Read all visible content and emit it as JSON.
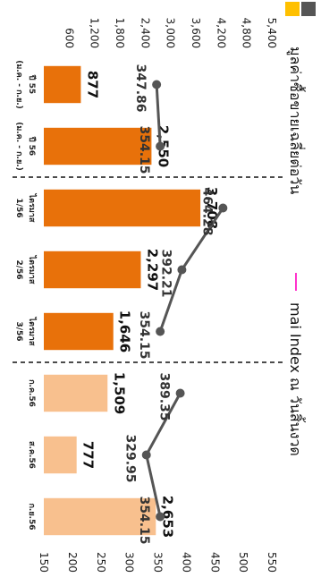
{
  "chart_data": {
    "type": "bar+line",
    "categories": [
      {
        "line1": "ปี 55",
        "line2": "(ม.ค. - ก.ย.)"
      },
      {
        "line1": "ปี 56",
        "line2": "(ม.ค. - ก.ย.)"
      },
      {
        "line1": "ไตรมาส",
        "line2": "1/56"
      },
      {
        "line1": "ไตรมาส",
        "line2": "2/56"
      },
      {
        "line1": "ไตรมาส",
        "line2": "3/56"
      },
      {
        "line1": "ก.ค.56",
        "line2": ""
      },
      {
        "line1": "ส.ค.56",
        "line2": ""
      },
      {
        "line1": "ก.ย.56",
        "line2": ""
      }
    ],
    "series": [
      {
        "kind": "bar",
        "name": "มูลค่าซื้อขายเฉลี่ยต่อวัน",
        "values": [
          877,
          2550,
          3708,
          2297,
          1646,
          1509,
          777,
          2653
        ],
        "labels": [
          "877",
          "2,550",
          "3,708",
          "2,297",
          "1,646",
          "1,509",
          "777",
          "2,653"
        ],
        "colors": [
          "#E8710A",
          "#E8710A",
          "#E8710A",
          "#E8710A",
          "#E8710A",
          "#F8C08E",
          "#F8C08E",
          "#F8C08E"
        ],
        "axis": "left"
      },
      {
        "kind": "line",
        "name": "mai Index ณ วันสิ้นงวด",
        "segments": [
          {
            "points": [
              [
                0,
                347.86
              ],
              [
                1,
                354.15
              ]
            ],
            "labels": [
              "347.86",
              "354.15"
            ]
          },
          {
            "points": [
              [
                2,
                464.28
              ],
              [
                3,
                392.21
              ],
              [
                4,
                354.15
              ]
            ],
            "labels": [
              "464.28",
              "392.21",
              "354.15"
            ]
          },
          {
            "points": [
              [
                5,
                389.35
              ],
              [
                6,
                329.95
              ],
              [
                7,
                354.15
              ]
            ],
            "labels": [
              "389.35",
              "329.95",
              "354.15"
            ]
          }
        ],
        "color": "#555555",
        "axis": "right"
      }
    ],
    "left_axis": {
      "ticks": [
        "600",
        "1,200",
        "1,800",
        "2,400",
        "3,000",
        "3,600",
        "4,200",
        "4,800",
        "5,400"
      ],
      "min": 0,
      "max": 5400,
      "step": 600
    },
    "right_axis": {
      "ticks": [
        "150",
        "200",
        "250",
        "300",
        "350",
        "400",
        "450",
        "500",
        "550"
      ],
      "min": 150,
      "max": 550,
      "step": 50
    },
    "separators_after": [
      1,
      4
    ],
    "legend": {
      "position": "top",
      "items": [
        {
          "label": "มูลค่าซื้อขายเฉลี่ยต่อวัน",
          "color": "#E8710A",
          "shape": "square"
        },
        {
          "label": "",
          "color": "#FFC000",
          "shape": "square"
        },
        {
          "label": "mai Index ณ วันสิ้นงวด",
          "color": "#FF33CC",
          "shape": "line"
        }
      ]
    }
  }
}
